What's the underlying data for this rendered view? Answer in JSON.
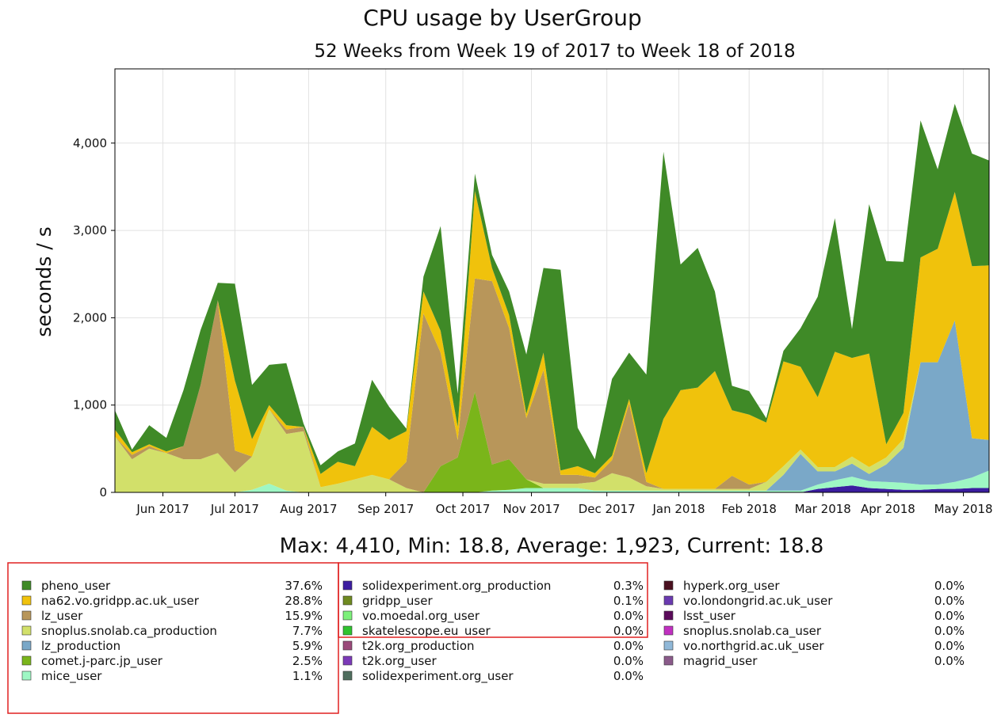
{
  "chart_data": {
    "type": "stacked_area",
    "title": "CPU usage by UserGroup",
    "subtitle": "52 Weeks from Week 19 of 2017 to Week 18 of 2018",
    "ylabel": "seconds / s",
    "stats": "Max: 4,410, Min: 18.8, Average: 1,923, Current: 18.8",
    "grid": true,
    "x": [
      0,
      1,
      2,
      3,
      4,
      5,
      6,
      7,
      8,
      9,
      10,
      11,
      12,
      13,
      14,
      15,
      16,
      17,
      18,
      19,
      20,
      21,
      22,
      23,
      24,
      25,
      26,
      27,
      28,
      29,
      30,
      31,
      32,
      33,
      34,
      35,
      36,
      37,
      38,
      39,
      40,
      41,
      42,
      43,
      44,
      45,
      46,
      47,
      48,
      49,
      50,
      51
    ],
    "xlim": [
      0,
      51
    ],
    "xticks": [
      {
        "value": 2.8,
        "label": "Jun 2017"
      },
      {
        "value": 7.0,
        "label": "Jul 2017"
      },
      {
        "value": 11.3,
        "label": "Aug 2017"
      },
      {
        "value": 15.8,
        "label": "Sep 2017"
      },
      {
        "value": 20.3,
        "label": "Oct 2017"
      },
      {
        "value": 24.3,
        "label": "Nov 2017"
      },
      {
        "value": 28.7,
        "label": "Dec 2017"
      },
      {
        "value": 32.9,
        "label": "Jan 2018"
      },
      {
        "value": 37.0,
        "label": "Feb 2018"
      },
      {
        "value": 41.3,
        "label": "Mar 2018"
      },
      {
        "value": 45.1,
        "label": "Apr 2018"
      },
      {
        "value": 49.5,
        "label": "May 2018"
      }
    ],
    "ylim": [
      0,
      4850
    ],
    "yticks": [
      0,
      {
        "value": 1000,
        "label": "1,000"
      },
      {
        "value": 2000,
        "label": "2,000"
      },
      {
        "value": 3000,
        "label": "3,000"
      },
      {
        "value": 4000,
        "label": "4,000"
      }
    ],
    "series": [
      {
        "name": "pheno_user",
        "percent": "37.6%",
        "color": "#3f8a27",
        "values": [
          220,
          30,
          220,
          155,
          640,
          630,
          200,
          1110,
          620,
          460,
          710,
          40,
          100,
          120,
          260,
          540,
          380,
          30,
          170,
          1200,
          380,
          200,
          150,
          270,
          680,
          970,
          2300,
          440,
          160,
          880,
          530,
          1130,
          3060,
          1440,
          1600,
          910,
          280,
          270,
          50,
          120,
          440,
          1150,
          1530,
          330,
          1710,
          2100,
          1730,
          1570,
          910,
          1010,
          1290,
          1200
        ]
      },
      {
        "name": "na62.vo.gridpp.ac.uk_user",
        "percent": "28.8%",
        "color": "#f0c20c",
        "values": [
          80,
          30,
          20,
          20,
          0,
          0,
          0,
          800,
          200,
          50,
          50,
          0,
          150,
          250,
          150,
          550,
          450,
          350,
          250,
          250,
          150,
          1000,
          150,
          150,
          50,
          200,
          50,
          100,
          50,
          50,
          50,
          100,
          800,
          1130,
          1160,
          1350,
          750,
          800,
          680,
          1200,
          950,
          800,
          1320,
          1130,
          1300,
          150,
          300,
          1200,
          1300,
          1470,
          1970,
          2000
        ]
      },
      {
        "name": "lz_user",
        "percent": "15.9%",
        "color": "#b8965a",
        "values": [
          0,
          50,
          30,
          0,
          150,
          850,
          1750,
          250,
          0,
          0,
          50,
          50,
          0,
          0,
          0,
          0,
          0,
          300,
          2050,
          1300,
          200,
          1300,
          2100,
          1500,
          700,
          1300,
          100,
          100,
          50,
          150,
          850,
          50,
          0,
          0,
          0,
          0,
          150,
          50,
          0,
          0,
          0,
          0,
          0,
          0,
          0,
          0,
          0,
          0,
          0,
          0,
          0,
          0
        ]
      },
      {
        "name": "snoplus.snolab.ca_production",
        "percent": "7.7%",
        "color": "#d2e06a",
        "values": [
          640,
          380,
          500,
          450,
          380,
          380,
          450,
          230,
          380,
          850,
          650,
          700,
          60,
          100,
          150,
          200,
          150,
          50,
          0,
          0,
          0,
          0,
          0,
          0,
          0,
          50,
          50,
          50,
          100,
          200,
          150,
          50,
          20,
          20,
          20,
          20,
          20,
          20,
          100,
          100,
          50,
          50,
          50,
          80,
          80,
          80,
          100,
          0,
          0,
          0,
          0,
          0
        ]
      },
      {
        "name": "lz_production",
        "percent": "5.9%",
        "color": "#7aa8c8",
        "values": [
          0,
          0,
          0,
          0,
          0,
          0,
          0,
          0,
          0,
          0,
          0,
          0,
          0,
          0,
          0,
          0,
          0,
          0,
          0,
          0,
          0,
          0,
          0,
          0,
          0,
          0,
          0,
          0,
          0,
          0,
          0,
          0,
          0,
          0,
          0,
          0,
          0,
          0,
          0,
          180,
          420,
          150,
          100,
          150,
          80,
          200,
          400,
          1400,
          1400,
          1850,
          450,
          350
        ]
      },
      {
        "name": "comet.j-parc.jp_user",
        "percent": "2.5%",
        "color": "#7ab51a",
        "values": [
          0,
          0,
          0,
          0,
          0,
          0,
          0,
          0,
          0,
          0,
          0,
          0,
          0,
          0,
          0,
          0,
          0,
          0,
          0,
          300,
          400,
          1150,
          300,
          350,
          100,
          0,
          0,
          0,
          0,
          0,
          0,
          0,
          0,
          0,
          0,
          0,
          0,
          0,
          0,
          0,
          0,
          0,
          0,
          0,
          0,
          0,
          0,
          0,
          0,
          0,
          0,
          0
        ]
      },
      {
        "name": "mice_user",
        "percent": "1.1%",
        "color": "#9ef7c4",
        "values": [
          0,
          0,
          0,
          0,
          0,
          0,
          0,
          0,
          30,
          100,
          20,
          0,
          0,
          0,
          0,
          0,
          0,
          0,
          0,
          0,
          0,
          0,
          20,
          30,
          50,
          50,
          50,
          50,
          20,
          20,
          20,
          20,
          20,
          20,
          20,
          20,
          20,
          20,
          20,
          20,
          20,
          50,
          80,
          100,
          80,
          80,
          80,
          60,
          50,
          80,
          120,
          200
        ]
      },
      {
        "name": "solidexperiment.org_production",
        "percent": "0.3%",
        "color": "#3b1da0",
        "values": [
          0,
          0,
          0,
          0,
          0,
          0,
          0,
          0,
          0,
          0,
          0,
          0,
          0,
          0,
          0,
          0,
          0,
          0,
          0,
          0,
          0,
          0,
          0,
          0,
          0,
          0,
          0,
          0,
          0,
          0,
          0,
          0,
          0,
          0,
          0,
          0,
          0,
          0,
          0,
          0,
          0,
          40,
          60,
          80,
          50,
          40,
          30,
          30,
          40,
          40,
          50,
          50
        ]
      },
      {
        "name": "gridpp_user",
        "percent": "0.1%",
        "color": "#6e8a20",
        "values": [
          0,
          0,
          0,
          0,
          0,
          0,
          0,
          0,
          0,
          0,
          0,
          0,
          0,
          0,
          0,
          0,
          0,
          0,
          0,
          0,
          0,
          0,
          0,
          0,
          0,
          0,
          0,
          0,
          0,
          0,
          0,
          0,
          0,
          0,
          0,
          0,
          0,
          0,
          0,
          0,
          0,
          0,
          0,
          0,
          0,
          0,
          0,
          0,
          0,
          0,
          0,
          0
        ]
      },
      {
        "name": "vo.moedal.org_user",
        "percent": "0.0%",
        "color": "#7cf07a",
        "values": [
          0,
          0,
          0,
          0,
          0,
          0,
          0,
          0,
          0,
          0,
          0,
          0,
          0,
          0,
          0,
          0,
          0,
          0,
          0,
          0,
          0,
          0,
          0,
          0,
          0,
          0,
          0,
          0,
          0,
          0,
          0,
          0,
          0,
          0,
          0,
          0,
          0,
          0,
          0,
          0,
          0,
          0,
          0,
          0,
          0,
          0,
          0,
          0,
          0,
          0,
          0,
          0
        ]
      },
      {
        "name": "skatelescope.eu_user",
        "percent": "0.0%",
        "color": "#2fc32f",
        "values": [
          0,
          0,
          0,
          0,
          0,
          0,
          0,
          0,
          0,
          0,
          0,
          0,
          0,
          0,
          0,
          0,
          0,
          0,
          0,
          0,
          0,
          0,
          0,
          0,
          0,
          0,
          0,
          0,
          0,
          0,
          0,
          0,
          0,
          0,
          0,
          0,
          0,
          0,
          0,
          0,
          0,
          0,
          0,
          0,
          0,
          0,
          0,
          0,
          0,
          0,
          0,
          0
        ]
      },
      {
        "name": "t2k.org_production",
        "percent": "0.0%",
        "color": "#9a4a7a",
        "values": [
          0,
          0,
          0,
          0,
          0,
          0,
          0,
          0,
          0,
          0,
          0,
          0,
          0,
          0,
          0,
          0,
          0,
          0,
          0,
          0,
          0,
          0,
          0,
          0,
          0,
          0,
          0,
          0,
          0,
          0,
          0,
          0,
          0,
          0,
          0,
          0,
          0,
          0,
          0,
          0,
          0,
          0,
          0,
          0,
          0,
          0,
          0,
          0,
          0,
          0,
          0,
          0
        ]
      },
      {
        "name": "t2k.org_user",
        "percent": "0.0%",
        "color": "#7b3ab8",
        "values": [
          0,
          0,
          0,
          0,
          0,
          0,
          0,
          0,
          0,
          0,
          0,
          0,
          0,
          0,
          0,
          0,
          0,
          0,
          0,
          0,
          0,
          0,
          0,
          0,
          0,
          0,
          0,
          0,
          0,
          0,
          0,
          0,
          0,
          0,
          0,
          0,
          0,
          0,
          0,
          0,
          0,
          0,
          0,
          0,
          0,
          0,
          0,
          0,
          0,
          0,
          0,
          0
        ]
      },
      {
        "name": "solidexperiment.org_user",
        "percent": "0.0%",
        "color": "#4e6e5e",
        "values": [
          0,
          0,
          0,
          0,
          0,
          0,
          0,
          0,
          0,
          0,
          0,
          0,
          0,
          0,
          0,
          0,
          0,
          0,
          0,
          0,
          0,
          0,
          0,
          0,
          0,
          0,
          0,
          0,
          0,
          0,
          0,
          0,
          0,
          0,
          0,
          0,
          0,
          0,
          0,
          0,
          0,
          0,
          0,
          0,
          0,
          0,
          0,
          0,
          0,
          0,
          0,
          0
        ]
      },
      {
        "name": "hyperk.org_user",
        "percent": "0.0%",
        "color": "#4a1020",
        "values": [
          0,
          0,
          0,
          0,
          0,
          0,
          0,
          0,
          0,
          0,
          0,
          0,
          0,
          0,
          0,
          0,
          0,
          0,
          0,
          0,
          0,
          0,
          0,
          0,
          0,
          0,
          0,
          0,
          0,
          0,
          0,
          0,
          0,
          0,
          0,
          0,
          0,
          0,
          0,
          0,
          0,
          0,
          0,
          0,
          0,
          0,
          0,
          0,
          0,
          0,
          0,
          0
        ]
      },
      {
        "name": "vo.londongrid.ac.uk_user",
        "percent": "0.0%",
        "color": "#6a3ab0",
        "values": [
          0,
          0,
          0,
          0,
          0,
          0,
          0,
          0,
          0,
          0,
          0,
          0,
          0,
          0,
          0,
          0,
          0,
          0,
          0,
          0,
          0,
          0,
          0,
          0,
          0,
          0,
          0,
          0,
          0,
          0,
          0,
          0,
          0,
          0,
          0,
          0,
          0,
          0,
          0,
          0,
          0,
          0,
          0,
          0,
          0,
          0,
          0,
          0,
          0,
          0,
          0,
          0
        ]
      },
      {
        "name": "lsst_user",
        "percent": "0.0%",
        "color": "#5a0a5a",
        "values": [
          0,
          0,
          0,
          0,
          0,
          0,
          0,
          0,
          0,
          0,
          0,
          0,
          0,
          0,
          0,
          0,
          0,
          0,
          0,
          0,
          0,
          0,
          0,
          0,
          0,
          0,
          0,
          0,
          0,
          0,
          0,
          0,
          0,
          0,
          0,
          0,
          0,
          0,
          0,
          0,
          0,
          0,
          0,
          0,
          0,
          0,
          0,
          0,
          0,
          0,
          0,
          0
        ]
      },
      {
        "name": "snoplus.snolab.ca_user",
        "percent": "0.0%",
        "color": "#c030c0",
        "values": [
          0,
          0,
          0,
          0,
          0,
          0,
          0,
          0,
          0,
          0,
          0,
          0,
          0,
          0,
          0,
          0,
          0,
          0,
          0,
          0,
          0,
          0,
          0,
          0,
          0,
          0,
          0,
          0,
          0,
          0,
          0,
          0,
          0,
          0,
          0,
          0,
          0,
          0,
          0,
          0,
          0,
          0,
          0,
          0,
          0,
          0,
          0,
          0,
          0,
          0,
          0,
          0
        ]
      },
      {
        "name": "vo.northgrid.ac.uk_user",
        "percent": "0.0%",
        "color": "#90b8d8",
        "values": [
          0,
          0,
          0,
          0,
          0,
          0,
          0,
          0,
          0,
          0,
          0,
          0,
          0,
          0,
          0,
          0,
          0,
          0,
          0,
          0,
          0,
          0,
          0,
          0,
          0,
          0,
          0,
          0,
          0,
          0,
          0,
          0,
          0,
          0,
          0,
          0,
          0,
          0,
          0,
          0,
          0,
          0,
          0,
          0,
          0,
          0,
          0,
          0,
          0,
          0,
          0,
          0
        ]
      },
      {
        "name": "magrid_user",
        "percent": "0.0%",
        "color": "#8a5a8a",
        "values": [
          0,
          0,
          0,
          0,
          0,
          0,
          0,
          0,
          0,
          0,
          0,
          0,
          0,
          0,
          0,
          0,
          0,
          0,
          0,
          0,
          0,
          0,
          0,
          0,
          0,
          0,
          0,
          0,
          0,
          0,
          0,
          0,
          0,
          0,
          0,
          0,
          0,
          0,
          0,
          0,
          0,
          0,
          0,
          0,
          0,
          0,
          0,
          0,
          0,
          0,
          0,
          0
        ]
      }
    ]
  }
}
